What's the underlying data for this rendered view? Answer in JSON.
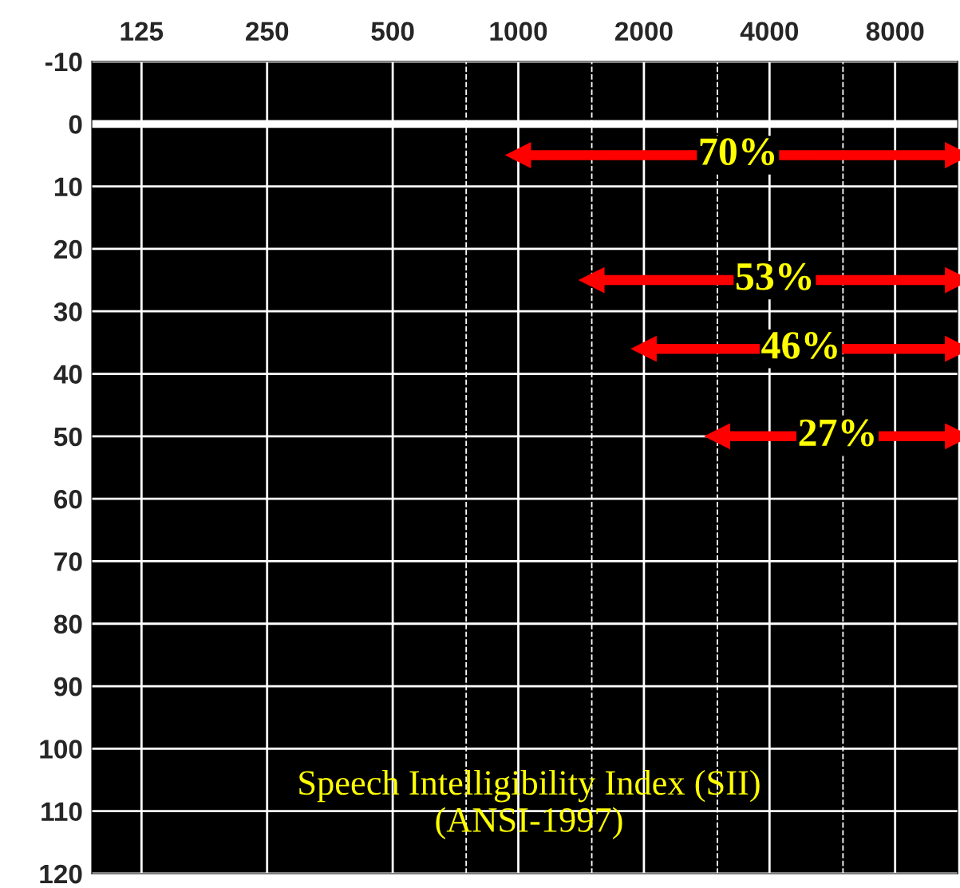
{
  "chart_data": {
    "type": "line",
    "xlim": [
      95,
      11300
    ],
    "xticks": [
      125,
      250,
      500,
      1000,
      2000,
      4000,
      8000
    ],
    "log": "x",
    "ylim": [
      120,
      -10
    ],
    "yticks": [
      -10,
      0,
      10,
      20,
      30,
      40,
      50,
      60,
      70,
      80,
      90,
      100,
      110,
      120
    ],
    "grid": true,
    "marker": "triangle",
    "line_style": "solid",
    "series": [
      {
        "name": "70%",
        "color": "#ff0000",
        "x": [
          1000,
          11300
        ],
        "values": [
          5,
          5
        ]
      },
      {
        "name": "53%",
        "color": "#ff0000",
        "x": [
          1500,
          11300
        ],
        "values": [
          25,
          25
        ]
      },
      {
        "name": "46%",
        "color": "#ff0000",
        "x": [
          2000,
          11300
        ],
        "values": [
          36,
          36
        ]
      },
      {
        "name": "27%",
        "color": "#ff0000",
        "x": [
          3000,
          11300
        ],
        "values": [
          50,
          50
        ]
      }
    ],
    "ref_lines": [
      {
        "axis": "x",
        "value": 750,
        "color": "#ffffff",
        "line_style": "dashed"
      },
      {
        "axis": "x",
        "value": 1500,
        "color": "#ffffff",
        "line_style": "dashed"
      },
      {
        "axis": "x",
        "value": 3000,
        "color": "#ffffff",
        "line_style": "dashed"
      },
      {
        "axis": "x",
        "value": 6000,
        "color": "#ffffff",
        "line_style": "dashed"
      },
      {
        "axis": "y",
        "value": 0,
        "color": "#ffffff",
        "line_style": "solid"
      }
    ],
    "annotations": [
      "Speech Intelligibility Index (SII)\n(ANSI-1997)"
    ]
  }
}
